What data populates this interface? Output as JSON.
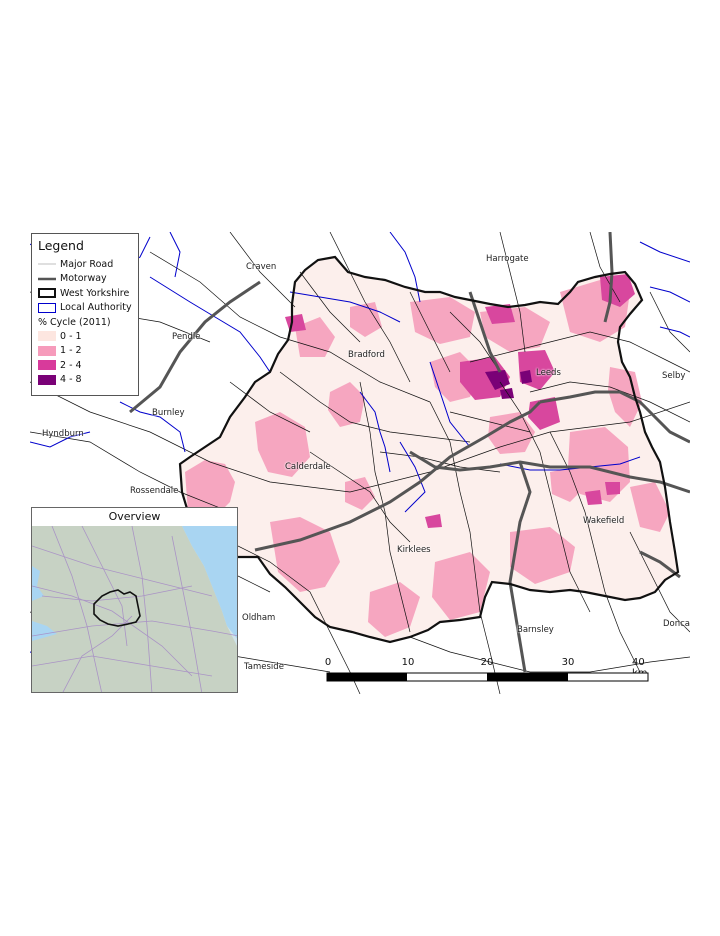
{
  "legend": {
    "title": "Legend",
    "items": [
      {
        "label": "Major Road"
      },
      {
        "label": "Motorway"
      },
      {
        "label": "West Yorkshire"
      },
      {
        "label": "Local Authority"
      }
    ],
    "ramp_title": "% Cycle (2011)",
    "classes": [
      {
        "label": "0 - 1",
        "color": "#fde6e0"
      },
      {
        "label": "1 - 2",
        "color": "#f69bbb"
      },
      {
        "label": "2 - 4",
        "color": "#d83a9b"
      },
      {
        "label": "4 - 8",
        "color": "#7a0177"
      }
    ]
  },
  "places": {
    "craven": "Craven",
    "harrogate": "Harrogate",
    "pendle": "Pendle",
    "bradford": "Bradford",
    "leeds": "Leeds",
    "selby": "Selby",
    "burnley": "Burnley",
    "hyndburn": "Hyndburn",
    "rossendale": "Rossendale",
    "calderdale": "Calderdale",
    "wakefield": "Wakefield",
    "kirklees": "Kirklees",
    "oldham": "Oldham",
    "barnsley": "Barnsley",
    "doncaster": "Donca",
    "tameside": "Tameside"
  },
  "overview": {
    "title": "Overview"
  },
  "scalebar": {
    "labels": [
      "0",
      "10",
      "20",
      "30",
      "40 km"
    ]
  },
  "colors": {
    "local_authority": "#0000cc",
    "motorway": "#555555",
    "boundary": "#111111",
    "road": "#111111"
  }
}
